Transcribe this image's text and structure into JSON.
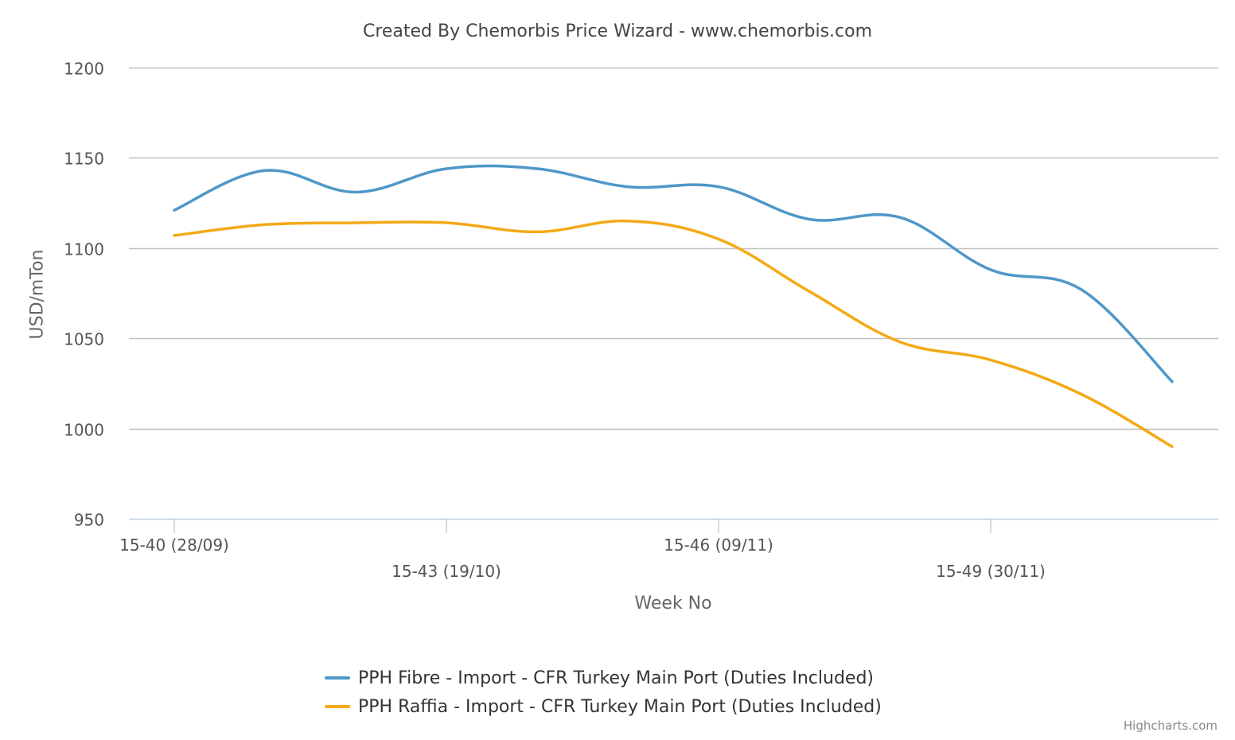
{
  "chart_data": {
    "type": "line",
    "title": "Created By Chemorbis Price Wizard - www.chemorbis.com",
    "xlabel": "Week No",
    "ylabel": "USD/mTon",
    "ylim": [
      950,
      1200
    ],
    "yticks": [
      950,
      1000,
      1050,
      1100,
      1150,
      1200
    ],
    "categories": [
      "15-40 (28/09)",
      "",
      "",
      "15-43 (19/10)",
      "",
      "",
      "15-46 (09/11)",
      "",
      "",
      "15-49 (30/11)",
      "",
      ""
    ],
    "tick_labels": [
      {
        "index": 0,
        "label": "15-40 (28/09)"
      },
      {
        "index": 3,
        "label": "15-43 (19/10)"
      },
      {
        "index": 6,
        "label": "15-46 (09/11)"
      },
      {
        "index": 9,
        "label": "15-49 (30/11)"
      }
    ],
    "grid": true,
    "legend_position": "bottom-center",
    "series": [
      {
        "name": "PPH Fibre - Import - CFR Turkey Main Port (Duties Included)",
        "color": "#4f97c9",
        "values": [
          1121,
          1143,
          1131,
          1144,
          1144,
          1134,
          1134,
          1116,
          1117,
          1088,
          1077,
          1026
        ]
      },
      {
        "name": "PPH Raffia - Import - CFR Turkey Main Port (Duties Included)",
        "color": "#f4a916",
        "values": [
          1107,
          1113,
          1114,
          1114,
          1109,
          1115,
          1105,
          1076,
          1048,
          1038,
          1019,
          990
        ]
      }
    ]
  },
  "credits": "Highcharts.com"
}
